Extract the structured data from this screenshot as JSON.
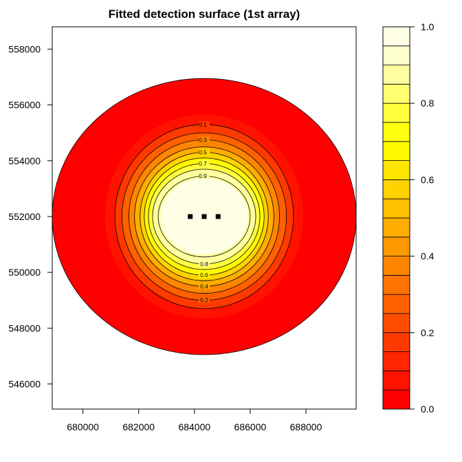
{
  "chart_data": {
    "type": "heatmap",
    "title": "Fitted detection surface (1st array)",
    "xlabel": "",
    "ylabel": "",
    "xlim": [
      678900,
      689800
    ],
    "ylim": [
      545100,
      558800
    ],
    "x_ticks": [
      680000,
      682000,
      684000,
      686000,
      688000
    ],
    "x_tick_labels": [
      "680000",
      "682000",
      "684000",
      "686000",
      "688000"
    ],
    "y_ticks": [
      546000,
      548000,
      550000,
      552000,
      554000,
      556000,
      558000
    ],
    "y_tick_labels": [
      "546000",
      "548000",
      "550000",
      "552000",
      "554000",
      "556000",
      "558000"
    ],
    "surface": {
      "center": [
        684350,
        552000
      ],
      "mask_radius_x": 5450,
      "mask_radius_y": 4950,
      "mask_flat_y": [
        546950,
        557050
      ],
      "contours": [
        {
          "level": 0.1,
          "rx": 3200,
          "ry": 3300,
          "label": "0.1"
        },
        {
          "level": 0.2,
          "rx": 2950,
          "ry": 3000,
          "label": "0.2"
        },
        {
          "level": 0.3,
          "rx": 2700,
          "ry": 2750,
          "label": "0.3"
        },
        {
          "level": 0.4,
          "rx": 2500,
          "ry": 2500,
          "label": "0.4"
        },
        {
          "level": 0.5,
          "rx": 2300,
          "ry": 2300,
          "label": "0.5"
        },
        {
          "level": 0.6,
          "rx": 2150,
          "ry": 2100,
          "label": "0.6"
        },
        {
          "level": 0.7,
          "rx": 2000,
          "ry": 1900,
          "label": "0.7"
        },
        {
          "level": 0.8,
          "rx": 1850,
          "ry": 1700,
          "label": "0.8"
        },
        {
          "level": 0.9,
          "rx": 1650,
          "ry": 1450,
          "label": "0.9"
        }
      ]
    },
    "detectors": [
      {
        "x": 683850,
        "y": 552000
      },
      {
        "x": 684350,
        "y": 552000
      },
      {
        "x": 684850,
        "y": 552000
      }
    ],
    "colorbar": {
      "min": 0.0,
      "max": 1.0,
      "bins": 20,
      "ticks": [
        0.0,
        0.2,
        0.4,
        0.6,
        0.8,
        1.0
      ],
      "tick_labels": [
        "0.0",
        "0.2",
        "0.4",
        "0.6",
        "0.8",
        "1.0"
      ],
      "palette_name": "heat",
      "colors": [
        "#FF0000",
        "#FF1300",
        "#FF2600",
        "#FF3A00",
        "#FF4D00",
        "#FF6000",
        "#FF7300",
        "#FF8600",
        "#FF9900",
        "#FFAD00",
        "#FFC000",
        "#FFD300",
        "#FFE600",
        "#FFF900",
        "#FFFF10",
        "#FFFF40",
        "#FFFF70",
        "#FFFF9F",
        "#FFFFCF",
        "#FFFFE6"
      ]
    }
  }
}
